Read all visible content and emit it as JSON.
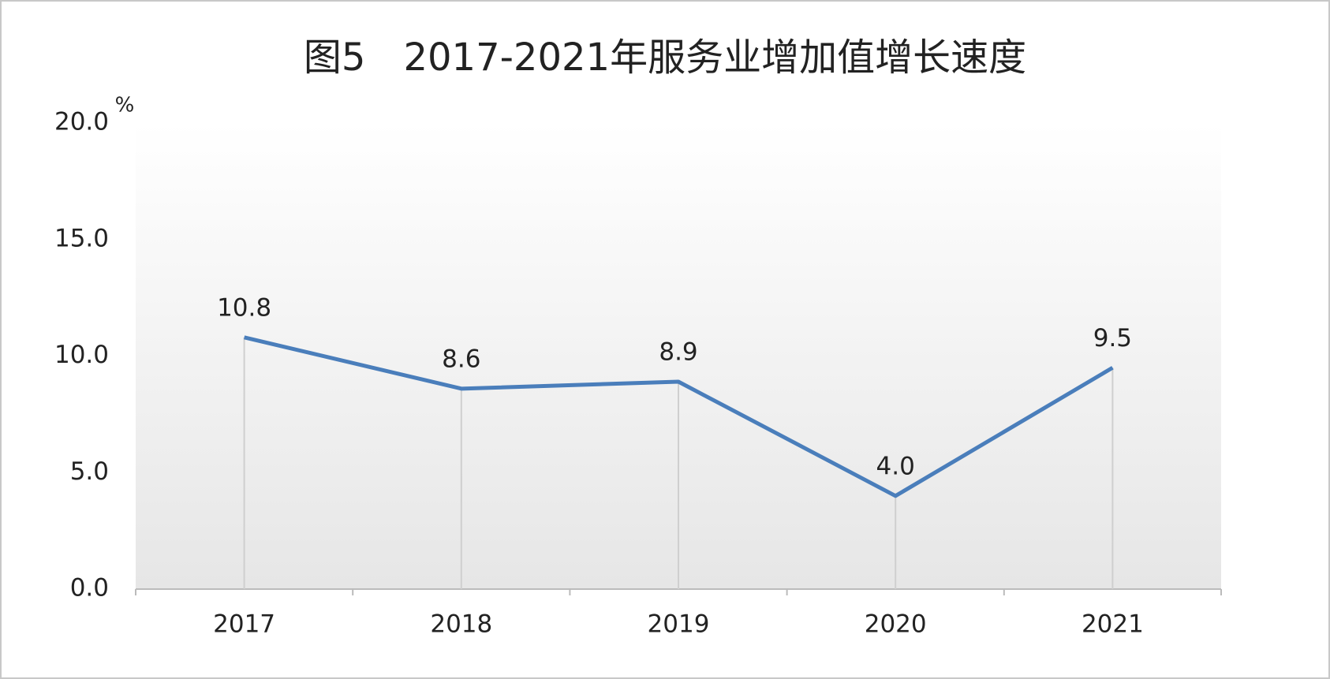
{
  "chart_data": {
    "type": "line",
    "title": "图5　2017-2021年服务业增加值增长速度",
    "unit": "%",
    "categories": [
      "2017",
      "2018",
      "2019",
      "2020",
      "2021"
    ],
    "series": [
      {
        "name": "服务业增加值增长速度",
        "color": "#4a7ebb",
        "values": [
          10.8,
          8.6,
          8.9,
          4.0,
          9.5
        ],
        "value_labels": [
          "10.8",
          "8.6",
          "8.9",
          "4.0",
          "9.5"
        ]
      }
    ],
    "ylim": [
      0,
      20
    ],
    "yticks": [
      {
        "value": 0,
        "label": "0.0"
      },
      {
        "value": 5,
        "label": "5.0"
      },
      {
        "value": 10,
        "label": "10.0"
      },
      {
        "value": 15,
        "label": "15.0"
      },
      {
        "value": 20,
        "label": "20.0"
      }
    ],
    "grid": false
  }
}
